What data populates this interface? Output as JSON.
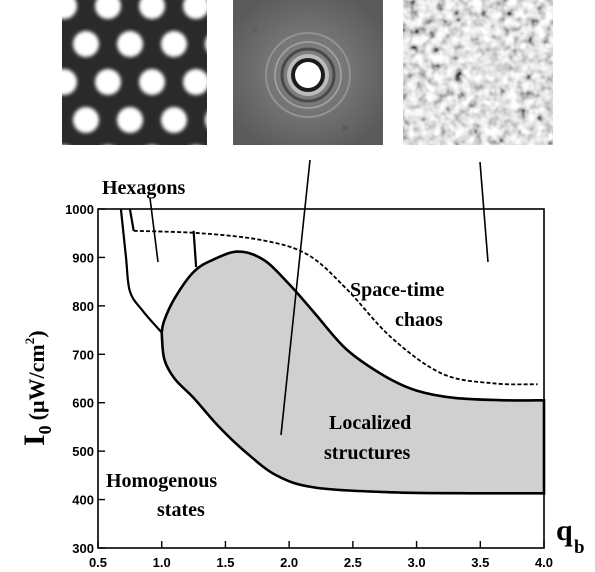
{
  "figure": {
    "insets": [
      {
        "name": "Hexagons pattern image"
      },
      {
        "name": "Localized structure image"
      },
      {
        "name": "Space-time chaos image"
      }
    ]
  },
  "chart_data": {
    "type": "area",
    "x": {
      "label": "q",
      "subscript": "b",
      "range": [
        0.5,
        4.0
      ],
      "ticks": [
        "0.5",
        "1.0",
        "1.5",
        "2.0",
        "2.5",
        "3.0",
        "3.5",
        "4.0"
      ]
    },
    "y": {
      "label": "I",
      "label_subscript": "0",
      "unit": "(μW/cm",
      "unit_sup": "2",
      "unit_close": ")",
      "range": [
        300,
        1000
      ],
      "ticks": [
        "300",
        "400",
        "500",
        "600",
        "700",
        "800",
        "900",
        "1000"
      ]
    },
    "regions": {
      "hexagons": "Hexagons",
      "spacetime_line1": "Space-time",
      "spacetime_line2": "chaos",
      "localized_line1": "Localized",
      "localized_line2": "structures",
      "homogenous_line1": "Homogenous",
      "homogenous_line2": "states"
    },
    "boundaries": {
      "chaos_threshold": [
        [
          0.78,
          955
        ],
        [
          1.3,
          950
        ],
        [
          1.8,
          935
        ],
        [
          2.15,
          905
        ],
        [
          2.45,
          835
        ],
        [
          2.8,
          735
        ],
        [
          3.2,
          660
        ],
        [
          3.6,
          640
        ],
        [
          3.95,
          638
        ]
      ],
      "hexagon_left": [
        [
          0.68,
          1000
        ],
        [
          0.72,
          900
        ],
        [
          0.75,
          830
        ],
        [
          0.85,
          790
        ],
        [
          1.0,
          745
        ]
      ],
      "hexagon_inner_left": [
        [
          0.75,
          1000
        ],
        [
          0.78,
          955
        ]
      ],
      "hexagon_inner_right": [
        [
          1.25,
          955
        ],
        [
          1.27,
          880
        ]
      ],
      "localized_region": [
        [
          1.0,
          745
        ],
        [
          1.02,
          690
        ],
        [
          1.1,
          650
        ],
        [
          1.25,
          610
        ],
        [
          1.45,
          550
        ],
        [
          1.65,
          500
        ],
        [
          1.9,
          450
        ],
        [
          2.2,
          425
        ],
        [
          2.8,
          415
        ],
        [
          3.5,
          413
        ],
        [
          4.0,
          413
        ],
        [
          4.0,
          605
        ],
        [
          3.7,
          605
        ],
        [
          3.3,
          610
        ],
        [
          3.0,
          625
        ],
        [
          2.75,
          655
        ],
        [
          2.45,
          710
        ],
        [
          2.2,
          785
        ],
        [
          2.0,
          845
        ],
        [
          1.8,
          895
        ],
        [
          1.6,
          912
        ],
        [
          1.4,
          895
        ],
        [
          1.25,
          870
        ],
        [
          1.1,
          815
        ],
        [
          1.02,
          770
        ],
        [
          1.0,
          745
        ]
      ]
    }
  }
}
